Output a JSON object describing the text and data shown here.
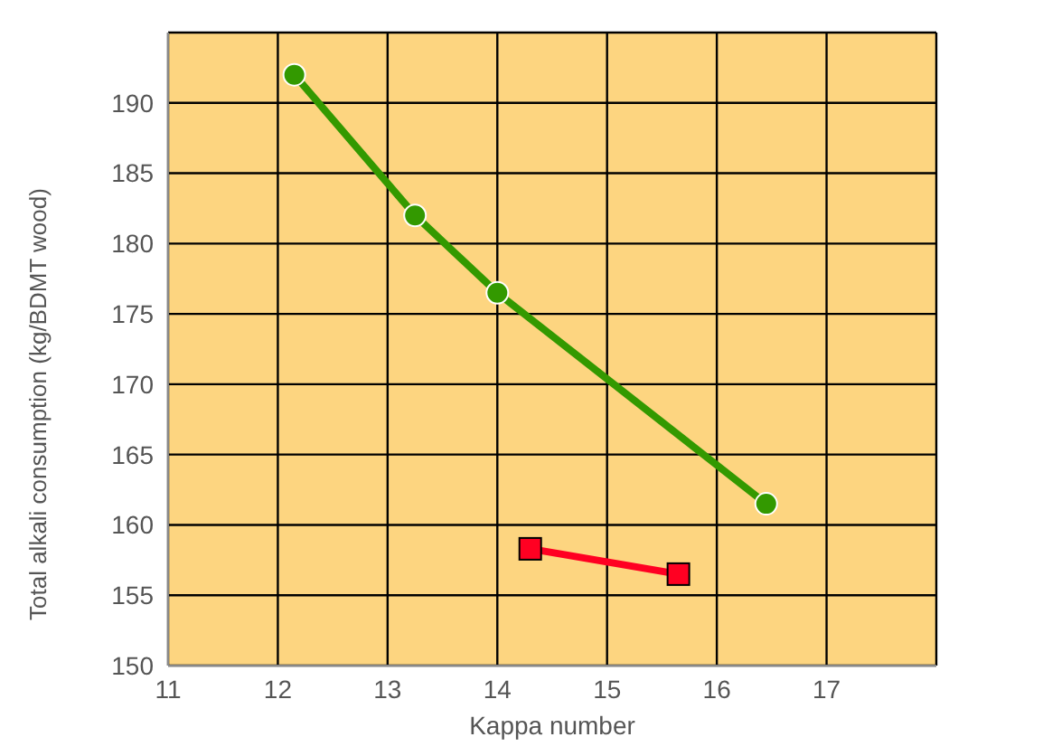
{
  "chart_data": {
    "type": "line",
    "xlabel": "Kappa number",
    "ylabel": "Total alkali consumption (kg/BDMT wood)",
    "xlim": [
      11,
      18
    ],
    "xticks": [
      11,
      12,
      13,
      14,
      15,
      16,
      17,
      {
        "value": 18,
        "label": null
      }
    ],
    "ylim": [
      150,
      195
    ],
    "yticks": [
      150,
      155,
      160,
      165,
      170,
      175,
      180,
      185,
      190,
      {
        "value": 195,
        "label": null
      }
    ],
    "grid": true,
    "line_style": "solid",
    "series": [
      {
        "color": "#339900",
        "marker": "circle",
        "x": [
          12.15,
          13.25,
          14.0,
          16.45
        ],
        "values": [
          192,
          182,
          176.5,
          161.5
        ]
      },
      {
        "color": "#ff0022",
        "marker": "square",
        "x": [
          14.3,
          15.65
        ],
        "values": [
          158.3,
          156.5
        ]
      }
    ]
  }
}
